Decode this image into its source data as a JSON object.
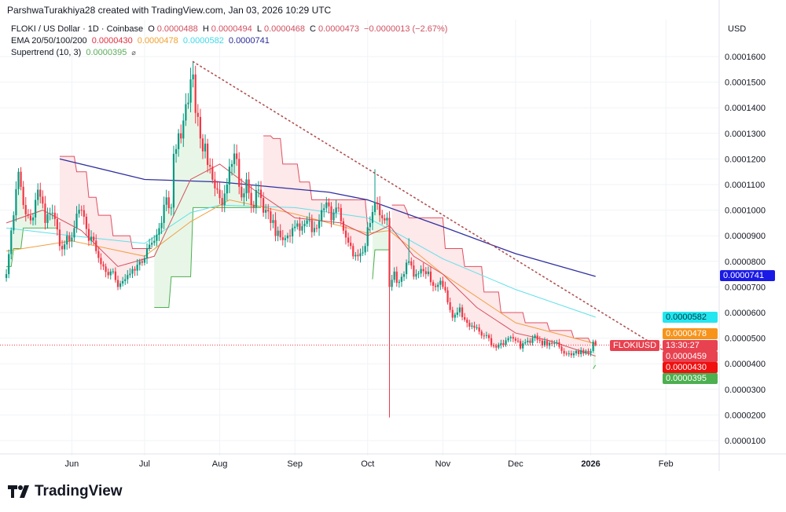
{
  "credit": "ParshwaTurakhiya28 created with TradingView.com, Jan 03, 2026 10:29 UTC",
  "legend": {
    "symbol": "FLOKI / US Dollar · 1D · Coinbase",
    "open_label": "O",
    "open": "0.0000488",
    "high_label": "H",
    "high": "0.0000494",
    "low_label": "L",
    "low": "0.0000468",
    "close_label": "C",
    "close": "0.0000473",
    "change": "−0.0000013 (−2.67%)",
    "ema_label": "EMA 20/50/100/200",
    "ema20": "0.0000430",
    "ema50": "0.0000478",
    "ema100": "0.0000582",
    "ema200": "0.0000741",
    "supertrend_label": "Supertrend (10, 3)",
    "supertrend": "0.0000395",
    "visibility_icon": "eye-off-icon"
  },
  "price_axis": {
    "currency": "USD",
    "ticks": [
      "0.0001600",
      "0.0001500",
      "0.0001400",
      "0.0001300",
      "0.0001200",
      "0.0001100",
      "0.0001000",
      "0.0000900",
      "0.0000800",
      "0.0000700",
      "0.0000600",
      "0.0000500",
      "0.0000400",
      "0.0000300",
      "0.0000200",
      "0.0000100"
    ]
  },
  "time_axis": {
    "ticks": [
      {
        "label": "Jun",
        "date": "2025-06-01",
        "bold": false
      },
      {
        "label": "Jul",
        "date": "2025-07-01",
        "bold": false
      },
      {
        "label": "Aug",
        "date": "2025-08-01",
        "bold": false
      },
      {
        "label": "Sep",
        "date": "2025-09-01",
        "bold": false
      },
      {
        "label": "Oct",
        "date": "2025-10-01",
        "bold": false
      },
      {
        "label": "Nov",
        "date": "2025-11-01",
        "bold": false
      },
      {
        "label": "Dec",
        "date": "2025-12-01",
        "bold": false
      },
      {
        "label": "2026",
        "date": "2026-01-01",
        "bold": true
      },
      {
        "label": "Feb",
        "date": "2026-02-01",
        "bold": false
      }
    ]
  },
  "tags": {
    "ema200": {
      "value": "0.0000741",
      "color": "#1a1ae6"
    },
    "ema100": {
      "value": "0.0000582",
      "color": "#22e6f0"
    },
    "ema50": {
      "value": "0.0000478",
      "color": "#f7931a"
    },
    "symbol": {
      "label": "FLOKIUSD",
      "countdown": "13:30:27",
      "color": "#e8414f"
    },
    "price2": {
      "value": "0.0000459",
      "color": "#e8414f"
    },
    "ema20": {
      "value": "0.0000430",
      "color": "#f01010"
    },
    "supertrend": {
      "value": "0.0000395",
      "color": "#4caf50"
    }
  },
  "colors": {
    "up": "#089981",
    "down": "#f23645",
    "ema20": "#d4505a",
    "ema50": "#f0a040",
    "ema100": "#60e0e8",
    "ema200": "#3030a0",
    "st_up": "#4caf50",
    "st_down": "#e05060",
    "st_up_fill": "#e4f4e4",
    "st_down_fill": "#fde4e6",
    "trendline": "#b05050",
    "grid": "#f1f3f7"
  },
  "chart_data": {
    "type": "candlestick",
    "title": "FLOKI / US Dollar · 1D · Coinbase",
    "ylim": [
      5e-06,
      0.000165
    ],
    "xlim": [
      "2025-05-04",
      "2026-02-22"
    ],
    "last_price": 4.73e-05,
    "last_candle": {
      "date": "2026-01-03",
      "open": 4.88e-05,
      "high": 4.94e-05,
      "low": 4.68e-05,
      "close": 4.73e-05
    },
    "close_keypoints": [
      [
        "2025-05-05",
        7.5e-05
      ],
      [
        "2025-05-08",
        9.8e-05
      ],
      [
        "2025-05-10",
        0.000115
      ],
      [
        "2025-05-12",
        0.000102
      ],
      [
        "2025-05-15",
        9.6e-05
      ],
      [
        "2025-05-18",
        0.000108
      ],
      [
        "2025-05-21",
        9.5e-05
      ],
      [
        "2025-05-24",
        9.9e-05
      ],
      [
        "2025-05-27",
        8.6e-05
      ],
      [
        "2025-05-30",
        9e-05
      ],
      [
        "2025-06-02",
        9.3e-05
      ],
      [
        "2025-06-05",
        0.0001
      ],
      [
        "2025-06-08",
        8.8e-05
      ],
      [
        "2025-06-11",
        8.4e-05
      ],
      [
        "2025-06-14",
        7.8e-05
      ],
      [
        "2025-06-17",
        7.6e-05
      ],
      [
        "2025-06-20",
        7e-05
      ],
      [
        "2025-06-23",
        7.3e-05
      ],
      [
        "2025-06-26",
        7.7e-05
      ],
      [
        "2025-06-29",
        8e-05
      ],
      [
        "2025-07-02",
        8.5e-05
      ],
      [
        "2025-07-05",
        8.8e-05
      ],
      [
        "2025-07-08",
        9.5e-05
      ],
      [
        "2025-07-10",
        0.000105
      ],
      [
        "2025-07-12",
        0.000101
      ],
      [
        "2025-07-13",
        0.000122
      ],
      [
        "2025-07-15",
        0.00013
      ],
      [
        "2025-07-17",
        0.000135
      ],
      [
        "2025-07-19",
        0.000142
      ],
      [
        "2025-07-21",
        0.000153
      ],
      [
        "2025-07-22",
        0.000138
      ],
      [
        "2025-07-24",
        0.000128
      ],
      [
        "2025-07-26",
        0.000126
      ],
      [
        "2025-07-28",
        0.000117
      ],
      [
        "2025-07-31",
        0.000108
      ],
      [
        "2025-08-02",
        0.000102
      ],
      [
        "2025-08-04",
        0.00011
      ],
      [
        "2025-08-06",
        0.000118
      ],
      [
        "2025-08-08",
        0.00012
      ],
      [
        "2025-08-10",
        0.000105
      ],
      [
        "2025-08-12",
        0.000112
      ],
      [
        "2025-08-14",
        0.000102
      ],
      [
        "2025-08-17",
        0.000108
      ],
      [
        "2025-08-19",
        9.9e-05
      ],
      [
        "2025-08-22",
        9.5e-05
      ],
      [
        "2025-08-25",
        9.2e-05
      ],
      [
        "2025-08-28",
        8.9e-05
      ],
      [
        "2025-08-31",
        9.3e-05
      ],
      [
        "2025-09-03",
        9.2e-05
      ],
      [
        "2025-09-06",
        9.6e-05
      ],
      [
        "2025-09-09",
        9.3e-05
      ],
      [
        "2025-09-12",
        0.0001
      ],
      [
        "2025-09-14",
        0.000103
      ],
      [
        "2025-09-16",
        9.6e-05
      ],
      [
        "2025-09-18",
        0.000101
      ],
      [
        "2025-09-21",
        9.2e-05
      ],
      [
        "2025-09-24",
        8.6e-05
      ],
      [
        "2025-09-27",
        8.2e-05
      ],
      [
        "2025-09-30",
        8.6e-05
      ],
      [
        "2025-10-02",
        9.5e-05
      ],
      [
        "2025-10-04",
        0.000103
      ],
      [
        "2025-10-06",
        9.8e-05
      ],
      [
        "2025-10-08",
        9.6e-05
      ],
      [
        "2025-10-09",
        9.7e-05
      ],
      [
        "2025-10-10",
        7e-05
      ],
      [
        "2025-10-12",
        7.6e-05
      ],
      [
        "2025-10-14",
        7.2e-05
      ],
      [
        "2025-10-16",
        7.5e-05
      ],
      [
        "2025-10-18",
        8e-05
      ],
      [
        "2025-10-20",
        7.4e-05
      ],
      [
        "2025-10-23",
        7.7e-05
      ],
      [
        "2025-10-26",
        7.6e-05
      ],
      [
        "2025-10-29",
        7e-05
      ],
      [
        "2025-11-01",
        7e-05
      ],
      [
        "2025-11-03",
        6.4e-05
      ],
      [
        "2025-11-05",
        5.8e-05
      ],
      [
        "2025-11-08",
        6.2e-05
      ],
      [
        "2025-11-11",
        5.6e-05
      ],
      [
        "2025-11-14",
        5.4e-05
      ],
      [
        "2025-11-17",
        5.1e-05
      ],
      [
        "2025-11-20",
        5e-05
      ],
      [
        "2025-11-22",
        4.7e-05
      ],
      [
        "2025-11-25",
        4.8e-05
      ],
      [
        "2025-11-28",
        5e-05
      ],
      [
        "2025-12-01",
        4.9e-05
      ],
      [
        "2025-12-03",
        4.6e-05
      ],
      [
        "2025-12-06",
        4.9e-05
      ],
      [
        "2025-12-09",
        5.1e-05
      ],
      [
        "2025-12-11",
        4.9e-05
      ],
      [
        "2025-12-14",
        4.7e-05
      ],
      [
        "2025-12-17",
        4.8e-05
      ],
      [
        "2025-12-20",
        4.5e-05
      ],
      [
        "2025-12-23",
        4.4e-05
      ],
      [
        "2025-12-26",
        4.5e-05
      ],
      [
        "2025-12-29",
        4.4e-05
      ],
      [
        "2025-12-31",
        4.4e-05
      ],
      [
        "2026-01-01",
        4.5e-05
      ],
      [
        "2026-01-02",
        4.86e-05
      ],
      [
        "2026-01-03",
        4.73e-05
      ]
    ],
    "wicks": [
      {
        "date": "2025-07-21",
        "high": 0.000158
      },
      {
        "date": "2025-10-04",
        "high": 0.000116
      },
      {
        "date": "2025-10-10",
        "low": 1.9e-05
      },
      {
        "date": "2025-10-18",
        "high": 8.9e-05
      }
    ],
    "ema": {
      "ema20": [
        [
          "2025-05-05",
          9.5e-05
        ],
        [
          "2025-05-20",
          0.0001
        ],
        [
          "2025-06-05",
          9.2e-05
        ],
        [
          "2025-06-20",
          7.8e-05
        ],
        [
          "2025-07-05",
          8.2e-05
        ],
        [
          "2025-07-20",
          0.000112
        ],
        [
          "2025-08-01",
          0.000118
        ],
        [
          "2025-08-15",
          0.000108
        ],
        [
          "2025-09-01",
          9.7e-05
        ],
        [
          "2025-09-20",
          9.5e-05
        ],
        [
          "2025-10-01",
          9e-05
        ],
        [
          "2025-10-10",
          9.4e-05
        ],
        [
          "2025-10-20",
          8.2e-05
        ],
        [
          "2025-11-01",
          7.5e-05
        ],
        [
          "2025-11-15",
          6.2e-05
        ],
        [
          "2025-12-01",
          5.2e-05
        ],
        [
          "2025-12-15",
          4.9e-05
        ],
        [
          "2026-01-03",
          4.3e-05
        ]
      ],
      "ema50": [
        [
          "2025-05-05",
          8.4e-05
        ],
        [
          "2025-06-01",
          8.8e-05
        ],
        [
          "2025-07-01",
          8.2e-05
        ],
        [
          "2025-07-20",
          9.55e-05
        ],
        [
          "2025-08-05",
          0.000104
        ],
        [
          "2025-09-01",
          9.85e-05
        ],
        [
          "2025-10-01",
          9.1e-05
        ],
        [
          "2025-10-10",
          9.2e-05
        ],
        [
          "2025-11-01",
          7.5e-05
        ],
        [
          "2025-12-01",
          5.6e-05
        ],
        [
          "2026-01-03",
          4.78e-05
        ]
      ],
      "ema100": [
        [
          "2025-05-05",
          9.3e-05
        ],
        [
          "2025-06-01",
          9e-05
        ],
        [
          "2025-07-01",
          8.7e-05
        ],
        [
          "2025-07-20",
          9.9e-05
        ],
        [
          "2025-08-01",
          0.000102
        ],
        [
          "2025-09-01",
          0.000101
        ],
        [
          "2025-10-01",
          9.7e-05
        ],
        [
          "2025-10-15",
          9e-05
        ],
        [
          "2025-11-01",
          8.1e-05
        ],
        [
          "2025-12-01",
          6.9e-05
        ],
        [
          "2026-01-03",
          5.82e-05
        ]
      ],
      "ema200": [
        [
          "2025-05-27",
          0.00012
        ],
        [
          "2025-07-01",
          0.000112
        ],
        [
          "2025-08-01",
          0.000111
        ],
        [
          "2025-09-15",
          0.000107
        ],
        [
          "2025-10-01",
          0.000104
        ],
        [
          "2025-11-01",
          9.35e-05
        ],
        [
          "2025-12-01",
          8.3e-05
        ],
        [
          "2026-01-03",
          7.41e-05
        ]
      ]
    },
    "supertrend": [
      {
        "trend": "up",
        "points": [
          [
            "2025-05-05",
            7.8e-05
          ],
          [
            "2025-05-08",
            8.5e-05
          ],
          [
            "2025-05-12",
            9.3e-05
          ],
          [
            "2025-05-26",
            9.3e-05
          ]
        ]
      },
      {
        "trend": "down",
        "points": [
          [
            "2025-05-27",
            0.000121
          ],
          [
            "2025-06-03",
            0.000115
          ],
          [
            "2025-06-08",
            0.000105
          ],
          [
            "2025-06-12",
            9.8e-05
          ],
          [
            "2025-06-18",
            9e-05
          ],
          [
            "2025-06-26",
            8.5e-05
          ],
          [
            "2025-07-04",
            8.5e-05
          ]
        ]
      },
      {
        "trend": "up",
        "points": [
          [
            "2025-07-05",
            6.2e-05
          ],
          [
            "2025-07-10",
            6.2e-05
          ],
          [
            "2025-07-12",
            7.4e-05
          ],
          [
            "2025-07-19",
            7.4e-05
          ],
          [
            "2025-07-21",
            0.000101
          ],
          [
            "2025-08-18",
            0.000101
          ]
        ]
      },
      {
        "trend": "down",
        "points": [
          [
            "2025-08-19",
            0.000129
          ],
          [
            "2025-08-23",
            0.000128
          ],
          [
            "2025-08-27",
            0.000118
          ],
          [
            "2025-09-03",
            0.000111
          ],
          [
            "2025-09-08",
            0.000104
          ],
          [
            "2025-09-28",
            0.000104
          ],
          [
            "2025-10-01",
            9.3e-05
          ],
          [
            "2025-10-02",
            9.2e-05
          ]
        ]
      },
      {
        "trend": "up",
        "points": [
          [
            "2025-10-03",
            7.3e-05
          ],
          [
            "2025-10-04",
            8.45e-05
          ],
          [
            "2025-10-10",
            8.45e-05
          ]
        ]
      },
      {
        "trend": "down",
        "points": [
          [
            "2025-10-11",
            0.000102
          ],
          [
            "2025-10-17",
            0.0001
          ],
          [
            "2025-10-18",
            9.7e-05
          ],
          [
            "2025-10-28",
            9.7e-05
          ],
          [
            "2025-11-02",
            8.5e-05
          ],
          [
            "2025-11-10",
            7.8e-05
          ],
          [
            "2025-11-18",
            6.8e-05
          ],
          [
            "2025-11-25",
            6e-05
          ],
          [
            "2025-12-05",
            5.6e-05
          ],
          [
            "2025-12-15",
            5.3e-05
          ],
          [
            "2025-12-25",
            5e-05
          ],
          [
            "2026-01-01",
            4.8e-05
          ]
        ]
      },
      {
        "trend": "up",
        "points": [
          [
            "2026-01-02",
            3.8e-05
          ],
          [
            "2026-01-03",
            3.95e-05
          ]
        ]
      }
    ],
    "trendline": {
      "style": "dotted",
      "from": [
        "2025-07-21",
        0.000158
      ],
      "to": [
        "2026-02-15",
        3.65e-05
      ]
    }
  },
  "branding": {
    "logo_text": "TradingView"
  }
}
